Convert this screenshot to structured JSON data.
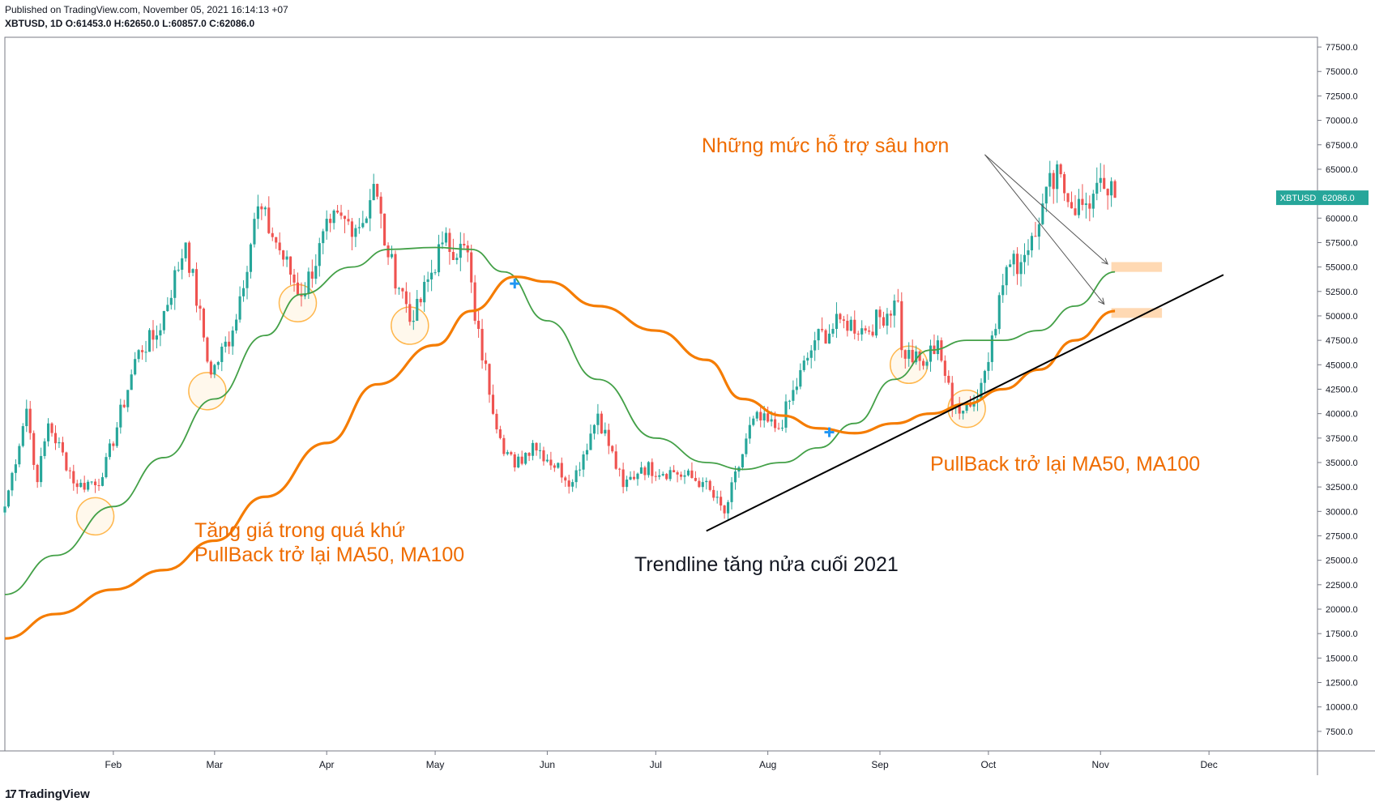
{
  "header": {
    "published": "Published on TradingView.com, November 05, 2021 16:14:13 +07",
    "symbol_line": "XBTUSD, 1D",
    "ohlc": "O:61453.0 H:62650.0 L:60857.0 C:62086.0"
  },
  "footer": {
    "brand": "TradingView",
    "logo_glyph": "17"
  },
  "colors": {
    "up": "#26a69a",
    "down": "#ef5350",
    "ma50": "#43a047",
    "ma100": "#f57c00",
    "annotation": "#ef6c00",
    "text": "#131722",
    "grid_border": "#787b86",
    "price_tag": "#26a69a",
    "marker": "#2196f3",
    "zone": "#ffcc99",
    "circle_fill": "#fff3e0",
    "circle_stroke": "#ffb74d"
  },
  "annotations": {
    "deeper_support": "Những mức hỗ trợ sâu hơn",
    "past_rally_1": "Tăng giá trong quá khứ",
    "past_rally_2": "PullBack trở lại MA50, MA100",
    "trendline": "Trendline tăng nửa cuối 2021",
    "pullback_recent": "PullBack trở lại MA50, MA100"
  },
  "chart_data": {
    "type": "candlestick",
    "symbol": "XBTUSD",
    "interval": "1D",
    "x_start": "2021-01-02",
    "x_end": "2021-12-31",
    "x_ticks": [
      "Feb",
      "Mar",
      "Apr",
      "May",
      "Jun",
      "Jul",
      "Aug",
      "Sep",
      "Oct",
      "Nov",
      "Dec"
    ],
    "x_tick_dates": [
      "2021-02-01",
      "2021-03-01",
      "2021-04-01",
      "2021-05-01",
      "2021-06-01",
      "2021-07-01",
      "2021-08-01",
      "2021-09-01",
      "2021-10-01",
      "2021-11-01",
      "2021-12-01"
    ],
    "y_ticks": [
      7500,
      10000,
      12500,
      15000,
      17500,
      20000,
      22500,
      25000,
      27500,
      30000,
      32500,
      35000,
      37500,
      40000,
      42500,
      45000,
      47500,
      50000,
      52500,
      55000,
      57500,
      60000,
      62500,
      65000,
      67500,
      70000,
      72500,
      75000,
      77500
    ],
    "ylim": [
      5500,
      78500
    ],
    "last_price": 62086.0,
    "last_price_label": "XBTUSD",
    "close_anchors": [
      [
        "2021-01-02",
        30500
      ],
      [
        "2021-01-08",
        40500
      ],
      [
        "2021-01-11",
        33000
      ],
      [
        "2021-01-14",
        39000
      ],
      [
        "2021-01-22",
        32500
      ],
      [
        "2021-01-29",
        33500
      ],
      [
        "2021-02-08",
        46500
      ],
      [
        "2021-02-13",
        48000
      ],
      [
        "2021-02-21",
        57500
      ],
      [
        "2021-02-28",
        44000
      ],
      [
        "2021-03-06",
        48500
      ],
      [
        "2021-03-13",
        61200
      ],
      [
        "2021-03-18",
        57500
      ],
      [
        "2021-03-25",
        52000
      ],
      [
        "2021-04-02",
        59500
      ],
      [
        "2021-04-11",
        59500
      ],
      [
        "2021-04-14",
        63500
      ],
      [
        "2021-04-18",
        56000
      ],
      [
        "2021-04-25",
        49500
      ],
      [
        "2021-05-03",
        57500
      ],
      [
        "2021-05-10",
        56500
      ],
      [
        "2021-05-12",
        49500
      ],
      [
        "2021-05-19",
        37500
      ],
      [
        "2021-05-23",
        34500
      ],
      [
        "2021-05-28",
        37000
      ],
      [
        "2021-06-08",
        33000
      ],
      [
        "2021-06-15",
        40000
      ],
      [
        "2021-06-22",
        32500
      ],
      [
        "2021-06-27",
        34500
      ],
      [
        "2021-07-06",
        34000
      ],
      [
        "2021-07-14",
        33000
      ],
      [
        "2021-07-20",
        29800
      ],
      [
        "2021-07-28",
        39500
      ],
      [
        "2021-08-04",
        38500
      ],
      [
        "2021-08-14",
        47500
      ],
      [
        "2021-08-22",
        49500
      ],
      [
        "2021-08-28",
        48500
      ],
      [
        "2021-09-06",
        51500
      ],
      [
        "2021-09-07",
        46500
      ],
      [
        "2021-09-13",
        44900
      ],
      [
        "2021-09-17",
        47500
      ],
      [
        "2021-09-21",
        40600
      ],
      [
        "2021-09-28",
        41500
      ],
      [
        "2021-10-02",
        48000
      ],
      [
        "2021-10-06",
        55000
      ],
      [
        "2021-10-10",
        55500
      ],
      [
        "2021-10-16",
        61500
      ],
      [
        "2021-10-20",
        65500
      ],
      [
        "2021-10-24",
        61000
      ],
      [
        "2021-10-28",
        61500
      ],
      [
        "2021-11-02",
        63000
      ],
      [
        "2021-11-05",
        62086
      ]
    ],
    "series": [
      {
        "name": "MA50",
        "points": [
          [
            "2021-01-02",
            21500
          ],
          [
            "2021-01-16",
            25500
          ],
          [
            "2021-02-01",
            30500
          ],
          [
            "2021-02-15",
            35500
          ],
          [
            "2021-03-01",
            41500
          ],
          [
            "2021-03-15",
            48000
          ],
          [
            "2021-03-25",
            52200
          ],
          [
            "2021-04-08",
            55000
          ],
          [
            "2021-04-18",
            56800
          ],
          [
            "2021-05-01",
            57000
          ],
          [
            "2021-05-11",
            56800
          ],
          [
            "2021-05-20",
            54500
          ],
          [
            "2021-06-01",
            49500
          ],
          [
            "2021-06-15",
            43500
          ],
          [
            "2021-07-01",
            37500
          ],
          [
            "2021-07-15",
            35000
          ],
          [
            "2021-07-25",
            34300
          ],
          [
            "2021-08-05",
            35000
          ],
          [
            "2021-08-15",
            36500
          ],
          [
            "2021-08-25",
            39000
          ],
          [
            "2021-09-05",
            43500
          ],
          [
            "2021-09-15",
            46500
          ],
          [
            "2021-09-25",
            47500
          ],
          [
            "2021-10-05",
            47500
          ],
          [
            "2021-10-15",
            48500
          ],
          [
            "2021-10-25",
            51000
          ],
          [
            "2021-11-05",
            54500
          ]
        ]
      },
      {
        "name": "MA100",
        "points": [
          [
            "2021-01-02",
            17000
          ],
          [
            "2021-01-16",
            19500
          ],
          [
            "2021-02-01",
            22000
          ],
          [
            "2021-02-15",
            24000
          ],
          [
            "2021-03-01",
            27000
          ],
          [
            "2021-03-15",
            31500
          ],
          [
            "2021-04-01",
            37000
          ],
          [
            "2021-04-15",
            43000
          ],
          [
            "2021-05-01",
            47000
          ],
          [
            "2021-05-11",
            50500
          ],
          [
            "2021-05-23",
            54000
          ],
          [
            "2021-06-01",
            53500
          ],
          [
            "2021-06-15",
            51000
          ],
          [
            "2021-07-01",
            48500
          ],
          [
            "2021-07-15",
            45500
          ],
          [
            "2021-07-25",
            41500
          ],
          [
            "2021-08-05",
            39800
          ],
          [
            "2021-08-15",
            38500
          ],
          [
            "2021-08-25",
            38000
          ],
          [
            "2021-09-05",
            39000
          ],
          [
            "2021-09-15",
            40000
          ],
          [
            "2021-09-25",
            41000
          ],
          [
            "2021-10-05",
            42500
          ],
          [
            "2021-10-15",
            44500
          ],
          [
            "2021-10-25",
            47500
          ],
          [
            "2021-11-05",
            50500
          ]
        ]
      }
    ],
    "trendline": [
      [
        "2021-07-15",
        28000
      ],
      [
        "2021-12-05",
        54200
      ]
    ],
    "arrows": [
      {
        "from": [
          "2021-09-30",
          66500
        ],
        "to": [
          "2021-11-03",
          55300
        ]
      },
      {
        "from": [
          "2021-09-30",
          66500
        ],
        "to": [
          "2021-11-02",
          51200
        ]
      }
    ],
    "support_zones": [
      {
        "x0": "2021-11-04",
        "x1": "2021-11-18",
        "y0": 54500,
        "y1": 55500
      },
      {
        "x0": "2021-11-04",
        "x1": "2021-11-18",
        "y0": 49800,
        "y1": 50800
      }
    ],
    "crosses": [
      [
        "2021-05-23",
        53300
      ],
      [
        "2021-08-18",
        38100
      ]
    ],
    "pullback_circles": [
      [
        "2021-01-27",
        29500
      ],
      [
        "2021-02-27",
        42300
      ],
      [
        "2021-03-24",
        51300
      ],
      [
        "2021-04-24",
        49000
      ],
      [
        "2021-09-09",
        45000
      ],
      [
        "2021-09-25",
        40500
      ]
    ]
  }
}
